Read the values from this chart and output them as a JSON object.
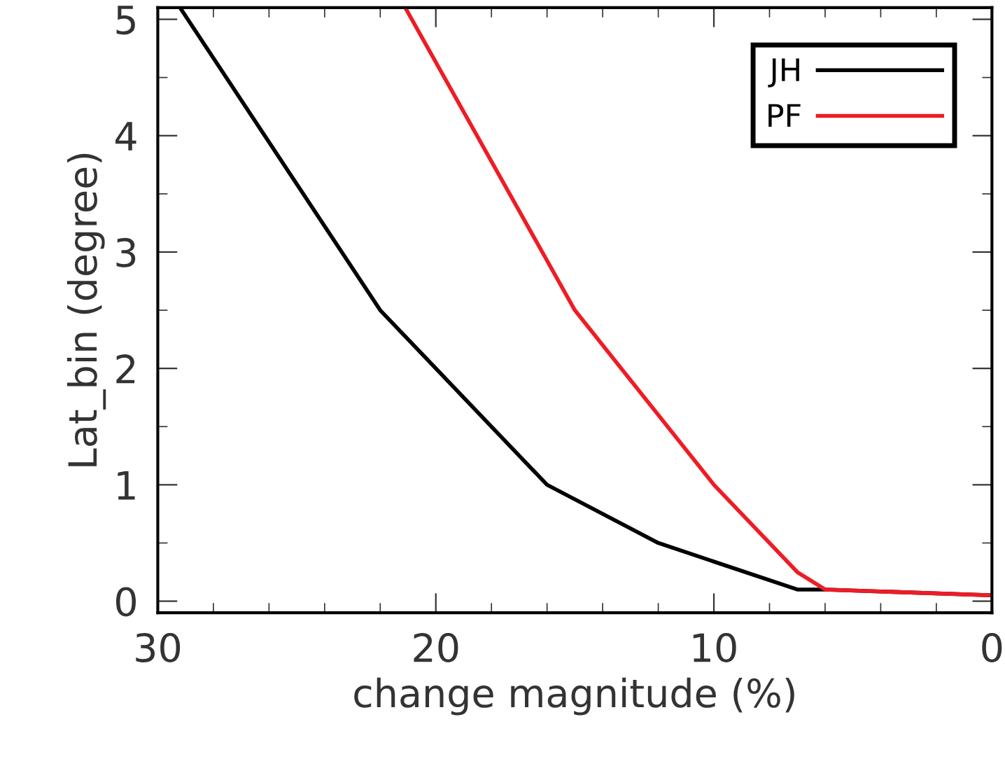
{
  "chart_data": {
    "type": "line",
    "xlabel": "change magnitude (%)",
    "ylabel": "Lat_bin (degree)",
    "xlim": [
      30,
      0
    ],
    "ylim": [
      -0.1,
      5.1
    ],
    "xticks": [
      30,
      20,
      10,
      0
    ],
    "yticks": [
      0,
      1,
      2,
      3,
      4,
      5
    ],
    "legend": "top right",
    "grid": false,
    "marker": "none",
    "line_style": "solid",
    "series": [
      {
        "name": "JH",
        "color": "#000000",
        "x": [
          29.2,
          22,
          16,
          12,
          7,
          6,
          0
        ],
        "values": [
          5.1,
          2.5,
          1,
          0.5,
          0.1,
          0.1,
          0.05
        ]
      },
      {
        "name": "PF",
        "color": "#ee1c25",
        "x": [
          21.1,
          15,
          10,
          7,
          6,
          0
        ],
        "values": [
          5.1,
          2.5,
          1,
          0.25,
          0.1,
          0.05
        ]
      }
    ]
  }
}
